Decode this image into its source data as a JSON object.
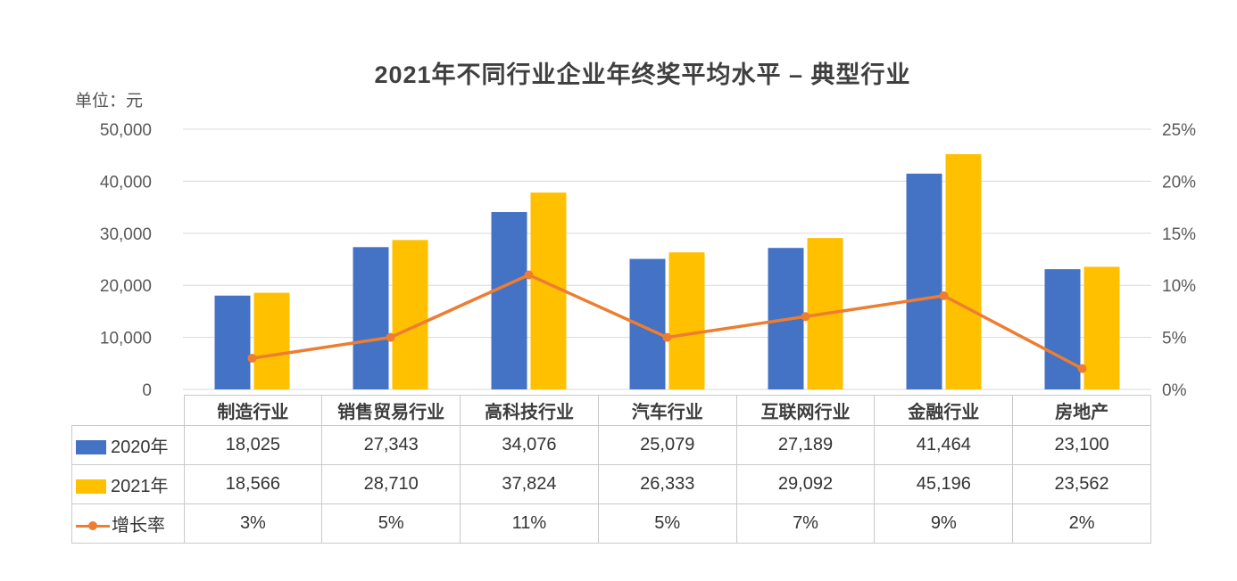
{
  "chart_data": {
    "type": "combo",
    "subtypes": [
      "bar",
      "line"
    ],
    "title": "2021年不同行业企业年终奖平均水平 – 典型行业",
    "unit_label": "单位：元",
    "categories": [
      "制造行业",
      "销售贸易行业",
      "高科技行业",
      "汽车行业",
      "互联网行业",
      "金融行业",
      "房地产"
    ],
    "series": [
      {
        "name": "2020年",
        "type": "bar",
        "color": "#4472c4",
        "values": [
          18025,
          27343,
          34076,
          25079,
          27189,
          41464,
          23100
        ]
      },
      {
        "name": "2021年",
        "type": "bar",
        "color": "#ffc000",
        "values": [
          18566,
          28710,
          37824,
          26333,
          29092,
          45196,
          23562
        ]
      },
      {
        "name": "增长率",
        "type": "line",
        "color": "#ed7d31",
        "axis": "right",
        "values_pct": [
          3,
          5,
          11,
          5,
          7,
          9,
          2
        ]
      }
    ],
    "left_axis": {
      "min": 0,
      "max": 50000,
      "step": 10000,
      "tick_labels": [
        "0",
        "10,000",
        "20,000",
        "30,000",
        "40,000",
        "50,000"
      ]
    },
    "right_axis": {
      "min": 0,
      "max": 25,
      "step": 5,
      "tick_labels": [
        "0%",
        "5%",
        "10%",
        "15%",
        "20%",
        "25%"
      ]
    },
    "grid": true,
    "gridline_color": "#d9d9d9",
    "legend_position": "table-left"
  },
  "table": {
    "headers": [
      "制造行业",
      "销售贸易行业",
      "高科技行业",
      "汽车行业",
      "互联网行业",
      "金融行业",
      "房地产"
    ],
    "rows": [
      {
        "legend": "2020年",
        "marker": "bar",
        "color": "#4472c4",
        "cells": [
          "18,025",
          "27,343",
          "34,076",
          "25,079",
          "27,189",
          "41,464",
          "23,100"
        ]
      },
      {
        "legend": "2021年",
        "marker": "bar",
        "color": "#ffc000",
        "cells": [
          "18,566",
          "28,710",
          "37,824",
          "26,333",
          "29,092",
          "45,196",
          "23,562"
        ]
      },
      {
        "legend": "增长率",
        "marker": "line",
        "color": "#ed7d31",
        "cells": [
          "3%",
          "5%",
          "11%",
          "5%",
          "7%",
          "9%",
          "2%"
        ]
      }
    ]
  }
}
